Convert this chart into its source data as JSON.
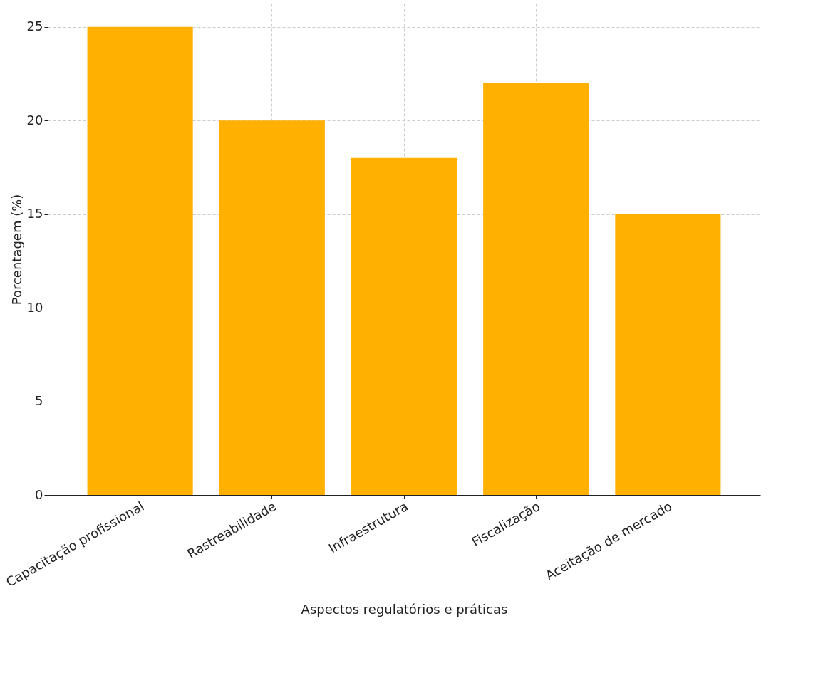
{
  "chart_data": {
    "type": "bar",
    "xlabel": "Aspectos regulatórios e práticas",
    "ylabel": "Porcentagem (%)",
    "categories": [
      "Capacitação profissional",
      "Rastreabilidade",
      "Infraestrutura",
      "Fiscalização",
      "Aceitação de mercado"
    ],
    "values": [
      25,
      20,
      18,
      22,
      15
    ],
    "color": "#ffb000",
    "ylim": [
      0,
      26.25
    ],
    "yticks": [
      0,
      5,
      10,
      15,
      20,
      25
    ],
    "grid": true
  }
}
